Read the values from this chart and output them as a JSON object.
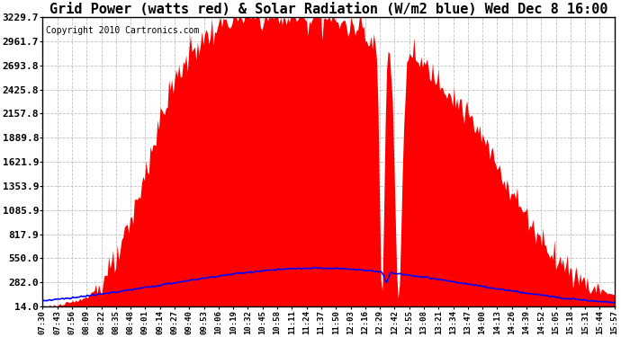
{
  "title": "Grid Power (watts red) & Solar Radiation (W/m2 blue) Wed Dec 8 16:00",
  "copyright": "Copyright 2010 Cartronics.com",
  "yticks": [
    14.0,
    282.0,
    550.0,
    817.9,
    1085.9,
    1353.9,
    1621.9,
    1889.8,
    2157.8,
    2425.8,
    2693.8,
    2961.7,
    3229.7
  ],
  "ymin": 14.0,
  "ymax": 3229.7,
  "red_color": "#FF0000",
  "blue_color": "#0000FF",
  "bg_color": "#FFFFFF",
  "grid_color": "#C0C0C0",
  "title_fontsize": 11,
  "copyright_fontsize": 7,
  "xtick_fontsize": 6.5,
  "ytick_fontsize": 8,
  "x_labels": [
    "07:30",
    "07:43",
    "07:56",
    "08:09",
    "08:22",
    "08:35",
    "08:48",
    "09:01",
    "09:14",
    "09:27",
    "09:40",
    "09:53",
    "10:06",
    "10:19",
    "10:32",
    "10:45",
    "10:58",
    "11:11",
    "11:24",
    "11:37",
    "11:50",
    "12:03",
    "12:16",
    "12:29",
    "12:42",
    "12:55",
    "13:08",
    "13:21",
    "13:34",
    "13:47",
    "14:00",
    "14:13",
    "14:26",
    "14:39",
    "14:52",
    "15:05",
    "15:18",
    "15:31",
    "15:44",
    "15:57"
  ]
}
